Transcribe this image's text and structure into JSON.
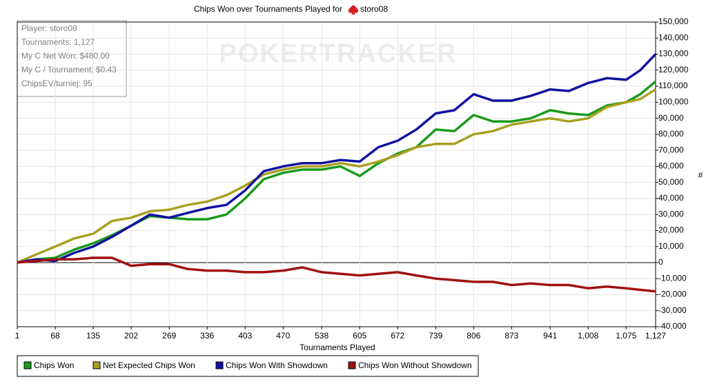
{
  "chart_data": {
    "type": "line",
    "title": "Chips Won over Tournaments Played for",
    "title_player": "storo08",
    "watermark": "POKERTRACKER",
    "x_label": "Tournaments Played",
    "y_label": "#",
    "info_box": [
      "Player: storo08",
      "Tournaments: 1,127",
      "My C Net Won: $480.00",
      "My C / Tournament: $0.43",
      "ChipsEV/turniej: 95"
    ],
    "grid": true,
    "legend": "bottom",
    "xlim": [
      1,
      1127
    ],
    "xticks": [
      1,
      68,
      135,
      202,
      269,
      336,
      403,
      470,
      538,
      605,
      672,
      739,
      806,
      873,
      941,
      {
        "value": 1008,
        "label": "1,008"
      },
      {
        "value": 1075,
        "label": "1,075"
      },
      {
        "value": 1127,
        "label": "1,127"
      }
    ],
    "ylim": [
      -40000,
      150000
    ],
    "yticks": [
      {
        "value": -40000,
        "label": "-40,000"
      },
      {
        "value": -30000,
        "label": "-30,000"
      },
      {
        "value": -20000,
        "label": "-20,000"
      },
      {
        "value": -10000,
        "label": "-10,000"
      },
      0,
      {
        "value": 10000,
        "label": "10,000"
      },
      {
        "value": 20000,
        "label": "20,000"
      },
      {
        "value": 30000,
        "label": "30,000"
      },
      {
        "value": 40000,
        "label": "40,000"
      },
      {
        "value": 50000,
        "label": "50,000"
      },
      {
        "value": 60000,
        "label": "60,000"
      },
      {
        "value": 70000,
        "label": "70,000"
      },
      {
        "value": 80000,
        "label": "80,000"
      },
      {
        "value": 90000,
        "label": "90,000"
      },
      {
        "value": 100000,
        "label": "100,000"
      },
      {
        "value": 110000,
        "label": "110,000"
      },
      {
        "value": 120000,
        "label": "120,000"
      },
      {
        "value": 130000,
        "label": "130,000"
      },
      {
        "value": 140000,
        "label": "140,000"
      },
      {
        "value": 150000,
        "label": "150,000"
      }
    ],
    "x": [
      1,
      34,
      68,
      101,
      135,
      168,
      202,
      235,
      269,
      302,
      336,
      370,
      403,
      436,
      470,
      504,
      538,
      571,
      605,
      638,
      672,
      705,
      739,
      772,
      806,
      840,
      873,
      907,
      941,
      974,
      1008,
      1041,
      1075,
      1100,
      1127
    ],
    "series": [
      {
        "name": "Chips Won",
        "color": "#1a9a1a",
        "values": [
          0,
          2000,
          3000,
          8000,
          12000,
          17000,
          23000,
          29000,
          28000,
          27000,
          27000,
          30000,
          40000,
          52000,
          56000,
          58000,
          58000,
          60000,
          54000,
          62000,
          68000,
          72000,
          83000,
          82000,
          92000,
          88000,
          88000,
          90000,
          95000,
          93000,
          92000,
          98000,
          100000,
          105000,
          113000
        ]
      },
      {
        "name": "Net Expected Chips Won",
        "color": "#a8a020",
        "values": [
          0,
          5000,
          10000,
          15000,
          18000,
          26000,
          28000,
          32000,
          33000,
          36000,
          38000,
          42000,
          48000,
          55000,
          58000,
          60000,
          60000,
          62000,
          60000,
          63000,
          67000,
          72000,
          74000,
          74000,
          80000,
          82000,
          86000,
          88000,
          90000,
          88000,
          90000,
          97000,
          100000,
          102000,
          108000
        ]
      },
      {
        "name": "Chips Won With Showdown",
        "color": "#1010a0",
        "values": [
          0,
          2000,
          1000,
          6000,
          10000,
          16000,
          23000,
          30000,
          28000,
          31000,
          34000,
          36000,
          45000,
          57000,
          60000,
          62000,
          62000,
          64000,
          63000,
          72000,
          76000,
          83000,
          93000,
          95000,
          105000,
          101000,
          101000,
          104000,
          108000,
          107000,
          112000,
          115000,
          114000,
          120000,
          130000
        ]
      },
      {
        "name": "Chips Won Without Showdown",
        "color": "#a01010",
        "values": [
          0,
          1000,
          2000,
          2000,
          3000,
          3000,
          -2000,
          -1000,
          -1000,
          -4000,
          -5000,
          -5000,
          -6000,
          -6000,
          -5000,
          -3000,
          -6000,
          -7000,
          -8000,
          -7000,
          -6000,
          -8000,
          -10000,
          -11000,
          -12000,
          -12000,
          -14000,
          -13000,
          -14000,
          -14000,
          -16000,
          -15000,
          -16000,
          -17000,
          -18000
        ]
      }
    ]
  }
}
